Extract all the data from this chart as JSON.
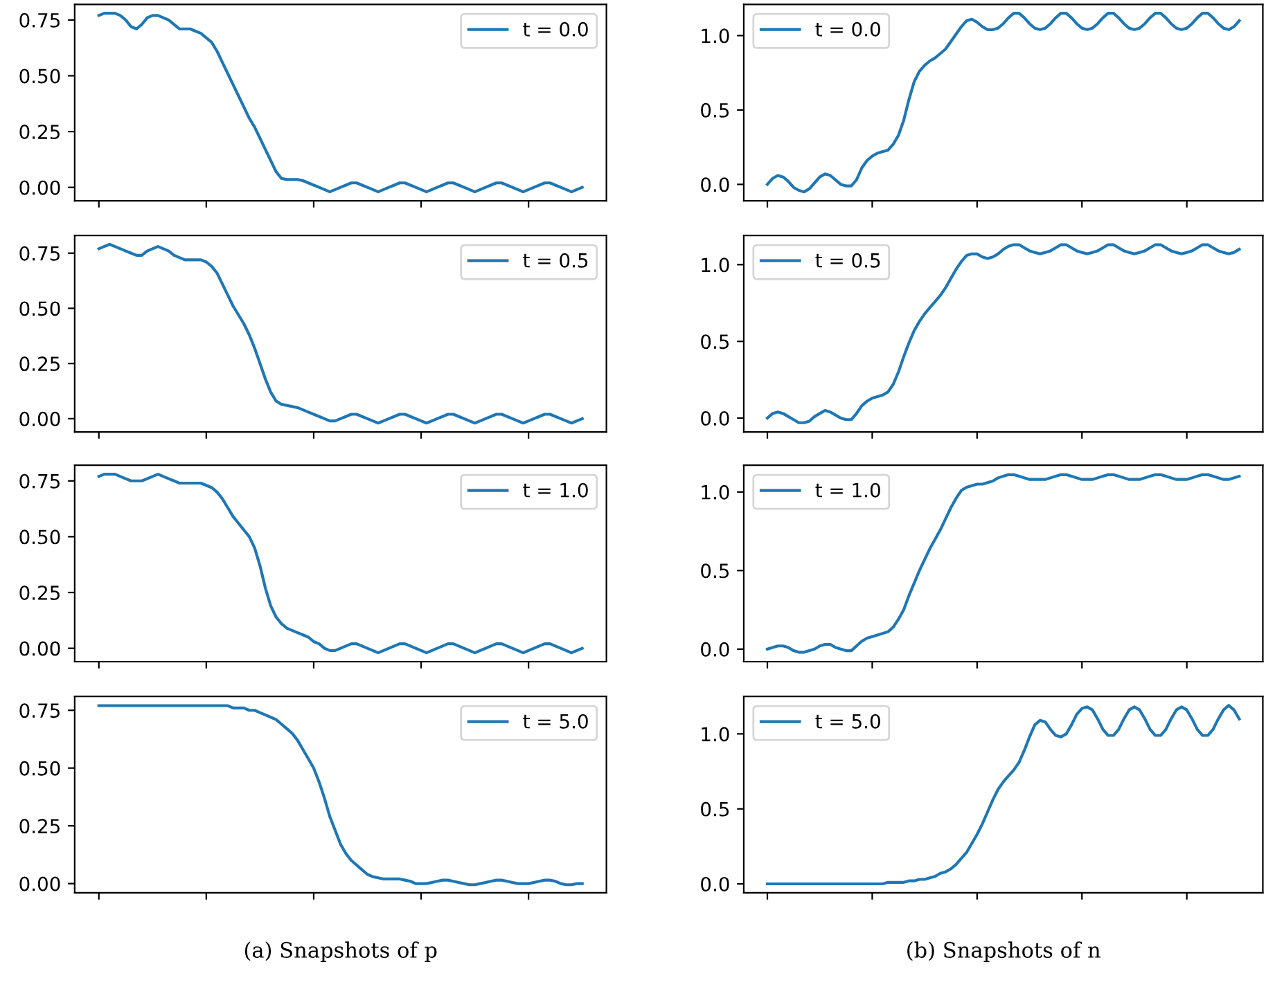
{
  "chart_data": [
    {
      "type": "line",
      "categories": [
        null,
        null,
        null,
        null,
        null,
        null,
        null,
        null,
        null,
        null,
        null,
        null,
        null,
        null,
        null,
        null,
        null,
        null,
        null,
        null,
        null,
        null,
        null,
        null,
        null,
        null,
        null,
        null,
        null,
        null,
        null,
        null,
        null,
        null,
        null,
        null,
        null,
        null,
        null,
        null,
        null,
        null,
        null,
        null,
        null,
        null,
        null,
        null,
        null,
        null,
        null,
        null,
        null,
        null,
        null,
        null,
        null,
        null,
        null,
        null,
        null,
        null,
        null,
        null,
        null,
        null,
        null,
        null,
        null,
        null,
        null,
        null,
        null,
        null,
        null,
        null,
        null,
        null,
        null,
        null,
        null,
        null,
        null,
        null,
        null,
        null,
        null,
        null,
        null,
        null,
        null
      ],
      "series": [
        {
          "name": "t = 0.0",
          "color": "#1f77b4",
          "values": [
            0.77,
            0.78,
            0.78,
            0.78,
            0.77,
            0.75,
            0.72,
            0.71,
            0.73,
            0.76,
            0.77,
            0.77,
            0.76,
            0.75,
            0.73,
            0.71,
            0.71,
            0.71,
            0.7,
            0.69,
            0.67,
            0.65,
            0.61,
            0.56,
            0.51,
            0.46,
            0.41,
            0.36,
            0.31,
            0.27,
            0.22,
            0.17,
            0.12,
            0.07,
            0.04,
            0.035,
            0.035,
            0.035,
            0.03,
            0.02,
            0.01,
            0.0,
            -0.01,
            -0.02,
            -0.01,
            0.0,
            0.01,
            0.02,
            0.02,
            0.01,
            0.0,
            -0.01,
            -0.02,
            -0.01,
            0.0,
            0.01,
            0.02,
            0.02,
            0.01,
            0.0,
            -0.01,
            -0.02,
            -0.01,
            0.0,
            0.01,
            0.02,
            0.02,
            0.01,
            0.0,
            -0.01,
            -0.02,
            -0.01,
            0.0,
            0.01,
            0.02,
            0.02,
            0.01,
            0.0,
            -0.01,
            -0.02,
            -0.01,
            0.0,
            0.01,
            0.02,
            0.02,
            0.01,
            0.0,
            -0.01,
            -0.02,
            -0.01,
            0.0
          ]
        }
      ],
      "ylim": [
        -0.06,
        0.82
      ],
      "yticks": [
        {
          "value": 0,
          "label": "0.00"
        },
        {
          "value": 0.25,
          "label": "0.25"
        },
        {
          "value": 0.5,
          "label": "0.50"
        },
        {
          "value": 0.75,
          "label": "0.75"
        }
      ],
      "legend": "top right"
    },
    {
      "type": "line",
      "categories": [
        null,
        null,
        null,
        null,
        null,
        null,
        null,
        null,
        null,
        null,
        null,
        null,
        null,
        null,
        null,
        null,
        null,
        null,
        null,
        null,
        null,
        null,
        null,
        null,
        null,
        null,
        null,
        null,
        null,
        null,
        null,
        null,
        null,
        null,
        null,
        null,
        null,
        null,
        null,
        null,
        null,
        null,
        null,
        null,
        null,
        null,
        null,
        null,
        null,
        null,
        null,
        null,
        null,
        null,
        null,
        null,
        null,
        null,
        null,
        null,
        null,
        null,
        null,
        null,
        null,
        null,
        null,
        null,
        null,
        null,
        null,
        null,
        null,
        null,
        null,
        null,
        null,
        null,
        null,
        null,
        null,
        null,
        null,
        null,
        null,
        null,
        null,
        null,
        null,
        null,
        null
      ],
      "series": [
        {
          "name": "t = 0.5",
          "color": "#1f77b4",
          "values": [
            0.77,
            0.78,
            0.79,
            0.78,
            0.77,
            0.76,
            0.75,
            0.74,
            0.74,
            0.76,
            0.77,
            0.78,
            0.77,
            0.76,
            0.74,
            0.73,
            0.72,
            0.72,
            0.72,
            0.72,
            0.71,
            0.69,
            0.66,
            0.61,
            0.56,
            0.51,
            0.47,
            0.43,
            0.38,
            0.32,
            0.25,
            0.18,
            0.12,
            0.08,
            0.065,
            0.06,
            0.055,
            0.05,
            0.04,
            0.03,
            0.02,
            0.01,
            0.0,
            -0.01,
            -0.01,
            0.0,
            0.01,
            0.02,
            0.02,
            0.01,
            0.0,
            -0.01,
            -0.02,
            -0.01,
            0.0,
            0.01,
            0.02,
            0.02,
            0.01,
            0.0,
            -0.01,
            -0.02,
            -0.01,
            0.0,
            0.01,
            0.02,
            0.02,
            0.01,
            0.0,
            -0.01,
            -0.02,
            -0.01,
            0.0,
            0.01,
            0.02,
            0.02,
            0.01,
            0.0,
            -0.01,
            -0.02,
            -0.01,
            0.0,
            0.01,
            0.02,
            0.02,
            0.01,
            0.0,
            -0.01,
            -0.02,
            -0.01,
            0.0
          ]
        }
      ],
      "ylim": [
        -0.06,
        0.83
      ],
      "yticks": [
        {
          "value": 0,
          "label": "0.00"
        },
        {
          "value": 0.25,
          "label": "0.25"
        },
        {
          "value": 0.5,
          "label": "0.50"
        },
        {
          "value": 0.75,
          "label": "0.75"
        }
      ],
      "legend": "top right"
    },
    {
      "type": "line",
      "categories": [
        null,
        null,
        null,
        null,
        null,
        null,
        null,
        null,
        null,
        null,
        null,
        null,
        null,
        null,
        null,
        null,
        null,
        null,
        null,
        null,
        null,
        null,
        null,
        null,
        null,
        null,
        null,
        null,
        null,
        null,
        null,
        null,
        null,
        null,
        null,
        null,
        null,
        null,
        null,
        null,
        null,
        null,
        null,
        null,
        null,
        null,
        null,
        null,
        null,
        null,
        null,
        null,
        null,
        null,
        null,
        null,
        null,
        null,
        null,
        null,
        null,
        null,
        null,
        null,
        null,
        null,
        null,
        null,
        null,
        null,
        null,
        null,
        null,
        null,
        null,
        null,
        null,
        null,
        null,
        null,
        null,
        null,
        null,
        null,
        null,
        null,
        null,
        null,
        null,
        null,
        null
      ],
      "series": [
        {
          "name": "t = 1.0",
          "color": "#1f77b4",
          "values": [
            0.77,
            0.78,
            0.78,
            0.78,
            0.77,
            0.76,
            0.75,
            0.75,
            0.75,
            0.76,
            0.77,
            0.78,
            0.77,
            0.76,
            0.75,
            0.74,
            0.74,
            0.74,
            0.74,
            0.74,
            0.73,
            0.72,
            0.7,
            0.67,
            0.63,
            0.59,
            0.56,
            0.53,
            0.5,
            0.45,
            0.37,
            0.27,
            0.19,
            0.14,
            0.11,
            0.09,
            0.08,
            0.07,
            0.06,
            0.05,
            0.03,
            0.02,
            0.0,
            -0.01,
            -0.01,
            0.0,
            0.01,
            0.02,
            0.02,
            0.01,
            0.0,
            -0.01,
            -0.02,
            -0.01,
            0.0,
            0.01,
            0.02,
            0.02,
            0.01,
            0.0,
            -0.01,
            -0.02,
            -0.01,
            0.0,
            0.01,
            0.02,
            0.02,
            0.01,
            0.0,
            -0.01,
            -0.02,
            -0.01,
            0.0,
            0.01,
            0.02,
            0.02,
            0.01,
            0.0,
            -0.01,
            -0.02,
            -0.01,
            0.0,
            0.01,
            0.02,
            0.02,
            0.01,
            0.0,
            -0.01,
            -0.02,
            -0.01,
            0.0
          ]
        }
      ],
      "ylim": [
        -0.06,
        0.82
      ],
      "yticks": [
        {
          "value": 0,
          "label": "0.00"
        },
        {
          "value": 0.25,
          "label": "0.25"
        },
        {
          "value": 0.5,
          "label": "0.50"
        },
        {
          "value": 0.75,
          "label": "0.75"
        }
      ],
      "legend": "top right"
    },
    {
      "type": "line",
      "categories": [
        null,
        null,
        null,
        null,
        null,
        null,
        null,
        null,
        null,
        null,
        null,
        null,
        null,
        null,
        null,
        null,
        null,
        null,
        null,
        null,
        null,
        null,
        null,
        null,
        null,
        null,
        null,
        null,
        null,
        null,
        null,
        null,
        null,
        null,
        null,
        null,
        null,
        null,
        null,
        null,
        null,
        null,
        null,
        null,
        null,
        null,
        null,
        null,
        null,
        null,
        null,
        null,
        null,
        null,
        null,
        null,
        null,
        null,
        null,
        null,
        null,
        null,
        null,
        null,
        null,
        null,
        null,
        null,
        null,
        null,
        null,
        null,
        null,
        null,
        null,
        null,
        null,
        null,
        null,
        null,
        null,
        null,
        null,
        null,
        null,
        null,
        null,
        null,
        null,
        null,
        null
      ],
      "series": [
        {
          "name": "t = 5.0",
          "color": "#1f77b4",
          "values": [
            0.77,
            0.77,
            0.77,
            0.77,
            0.77,
            0.77,
            0.77,
            0.77,
            0.77,
            0.77,
            0.77,
            0.77,
            0.77,
            0.77,
            0.77,
            0.77,
            0.77,
            0.77,
            0.77,
            0.77,
            0.77,
            0.77,
            0.77,
            0.77,
            0.77,
            0.76,
            0.76,
            0.76,
            0.75,
            0.75,
            0.74,
            0.73,
            0.72,
            0.71,
            0.69,
            0.67,
            0.65,
            0.62,
            0.58,
            0.54,
            0.5,
            0.44,
            0.37,
            0.29,
            0.23,
            0.17,
            0.13,
            0.1,
            0.08,
            0.06,
            0.04,
            0.03,
            0.025,
            0.02,
            0.02,
            0.02,
            0.02,
            0.015,
            0.01,
            0.0,
            0.0,
            0.0,
            0.005,
            0.01,
            0.015,
            0.015,
            0.01,
            0.005,
            0.0,
            -0.005,
            -0.005,
            0.0,
            0.005,
            0.01,
            0.015,
            0.015,
            0.01,
            0.005,
            0.0,
            0.0,
            0.0,
            0.005,
            0.01,
            0.015,
            0.015,
            0.01,
            0.0,
            -0.005,
            -0.005,
            0.0,
            0.0
          ]
        }
      ],
      "ylim": [
        -0.04,
        0.81
      ],
      "yticks": [
        {
          "value": 0,
          "label": "0.00"
        },
        {
          "value": 0.25,
          "label": "0.25"
        },
        {
          "value": 0.5,
          "label": "0.50"
        },
        {
          "value": 0.75,
          "label": "0.75"
        }
      ],
      "legend": "top right",
      "annotations": [
        "(a) Snapshots of p"
      ]
    },
    {
      "type": "line",
      "categories": [
        null,
        null,
        null,
        null,
        null,
        null,
        null,
        null,
        null,
        null,
        null,
        null,
        null,
        null,
        null,
        null,
        null,
        null,
        null,
        null,
        null,
        null,
        null,
        null,
        null,
        null,
        null,
        null,
        null,
        null,
        null,
        null,
        null,
        null,
        null,
        null,
        null,
        null,
        null,
        null,
        null,
        null,
        null,
        null,
        null,
        null,
        null,
        null,
        null,
        null,
        null,
        null,
        null,
        null,
        null,
        null,
        null,
        null,
        null,
        null,
        null,
        null,
        null,
        null,
        null,
        null,
        null,
        null,
        null,
        null,
        null,
        null,
        null,
        null,
        null,
        null,
        null,
        null,
        null,
        null,
        null,
        null,
        null,
        null,
        null,
        null,
        null,
        null,
        null,
        null,
        null
      ],
      "series": [
        {
          "name": "t = 0.0",
          "color": "#1f77b4",
          "values": [
            0.0,
            0.04,
            0.06,
            0.05,
            0.02,
            -0.02,
            -0.04,
            -0.05,
            -0.03,
            0.01,
            0.05,
            0.07,
            0.06,
            0.03,
            0.0,
            -0.01,
            -0.01,
            0.03,
            0.11,
            0.16,
            0.19,
            0.21,
            0.22,
            0.23,
            0.27,
            0.33,
            0.43,
            0.57,
            0.69,
            0.76,
            0.8,
            0.83,
            0.85,
            0.88,
            0.91,
            0.96,
            1.01,
            1.06,
            1.1,
            1.11,
            1.09,
            1.06,
            1.04,
            1.04,
            1.05,
            1.08,
            1.12,
            1.15,
            1.15,
            1.12,
            1.08,
            1.05,
            1.04,
            1.05,
            1.08,
            1.12,
            1.15,
            1.15,
            1.12,
            1.08,
            1.05,
            1.04,
            1.05,
            1.08,
            1.12,
            1.15,
            1.15,
            1.12,
            1.08,
            1.05,
            1.04,
            1.05,
            1.08,
            1.12,
            1.15,
            1.15,
            1.12,
            1.08,
            1.05,
            1.04,
            1.05,
            1.08,
            1.12,
            1.15,
            1.15,
            1.12,
            1.08,
            1.05,
            1.04,
            1.06,
            1.1
          ]
        }
      ],
      "ylim": [
        -0.11,
        1.21
      ],
      "yticks": [
        {
          "value": 0,
          "label": "0.0"
        },
        {
          "value": 0.5,
          "label": "0.5"
        },
        {
          "value": 1,
          "label": "1.0"
        }
      ],
      "legend": "top left"
    },
    {
      "type": "line",
      "categories": [
        null,
        null,
        null,
        null,
        null,
        null,
        null,
        null,
        null,
        null,
        null,
        null,
        null,
        null,
        null,
        null,
        null,
        null,
        null,
        null,
        null,
        null,
        null,
        null,
        null,
        null,
        null,
        null,
        null,
        null,
        null,
        null,
        null,
        null,
        null,
        null,
        null,
        null,
        null,
        null,
        null,
        null,
        null,
        null,
        null,
        null,
        null,
        null,
        null,
        null,
        null,
        null,
        null,
        null,
        null,
        null,
        null,
        null,
        null,
        null,
        null,
        null,
        null,
        null,
        null,
        null,
        null,
        null,
        null,
        null,
        null,
        null,
        null,
        null,
        null,
        null,
        null,
        null,
        null,
        null,
        null,
        null,
        null,
        null,
        null,
        null,
        null,
        null,
        null,
        null,
        null
      ],
      "series": [
        {
          "name": "t = 0.5",
          "color": "#1f77b4",
          "values": [
            0.0,
            0.03,
            0.04,
            0.03,
            0.01,
            -0.01,
            -0.03,
            -0.03,
            -0.02,
            0.01,
            0.03,
            0.05,
            0.04,
            0.02,
            0.0,
            -0.01,
            -0.01,
            0.03,
            0.08,
            0.11,
            0.13,
            0.14,
            0.15,
            0.17,
            0.22,
            0.3,
            0.4,
            0.49,
            0.57,
            0.63,
            0.68,
            0.72,
            0.76,
            0.8,
            0.85,
            0.91,
            0.97,
            1.02,
            1.06,
            1.07,
            1.07,
            1.05,
            1.04,
            1.05,
            1.07,
            1.1,
            1.12,
            1.13,
            1.13,
            1.11,
            1.09,
            1.08,
            1.07,
            1.08,
            1.09,
            1.11,
            1.13,
            1.13,
            1.11,
            1.09,
            1.08,
            1.07,
            1.08,
            1.09,
            1.11,
            1.13,
            1.13,
            1.11,
            1.09,
            1.08,
            1.07,
            1.08,
            1.09,
            1.11,
            1.13,
            1.13,
            1.11,
            1.09,
            1.08,
            1.07,
            1.08,
            1.09,
            1.11,
            1.13,
            1.13,
            1.11,
            1.09,
            1.08,
            1.07,
            1.08,
            1.1
          ]
        }
      ],
      "ylim": [
        -0.09,
        1.19
      ],
      "yticks": [
        {
          "value": 0,
          "label": "0.0"
        },
        {
          "value": 0.5,
          "label": "0.5"
        },
        {
          "value": 1,
          "label": "1.0"
        }
      ],
      "legend": "top left"
    },
    {
      "type": "line",
      "categories": [
        null,
        null,
        null,
        null,
        null,
        null,
        null,
        null,
        null,
        null,
        null,
        null,
        null,
        null,
        null,
        null,
        null,
        null,
        null,
        null,
        null,
        null,
        null,
        null,
        null,
        null,
        null,
        null,
        null,
        null,
        null,
        null,
        null,
        null,
        null,
        null,
        null,
        null,
        null,
        null,
        null,
        null,
        null,
        null,
        null,
        null,
        null,
        null,
        null,
        null,
        null,
        null,
        null,
        null,
        null,
        null,
        null,
        null,
        null,
        null,
        null,
        null,
        null,
        null,
        null,
        null,
        null,
        null,
        null,
        null,
        null,
        null,
        null,
        null,
        null,
        null,
        null,
        null,
        null,
        null,
        null,
        null,
        null,
        null,
        null,
        null,
        null,
        null,
        null,
        null,
        null
      ],
      "series": [
        {
          "name": "t = 1.0",
          "color": "#1f77b4",
          "values": [
            0.0,
            0.01,
            0.02,
            0.02,
            0.01,
            -0.01,
            -0.02,
            -0.02,
            -0.01,
            0.0,
            0.02,
            0.03,
            0.03,
            0.01,
            0.0,
            -0.01,
            -0.01,
            0.02,
            0.05,
            0.07,
            0.08,
            0.09,
            0.1,
            0.11,
            0.14,
            0.19,
            0.25,
            0.34,
            0.42,
            0.5,
            0.57,
            0.64,
            0.7,
            0.76,
            0.83,
            0.9,
            0.96,
            1.01,
            1.03,
            1.04,
            1.05,
            1.05,
            1.06,
            1.07,
            1.09,
            1.1,
            1.11,
            1.11,
            1.1,
            1.09,
            1.08,
            1.08,
            1.08,
            1.08,
            1.09,
            1.1,
            1.11,
            1.11,
            1.1,
            1.09,
            1.08,
            1.08,
            1.08,
            1.09,
            1.1,
            1.11,
            1.11,
            1.1,
            1.09,
            1.08,
            1.08,
            1.08,
            1.09,
            1.1,
            1.11,
            1.11,
            1.1,
            1.09,
            1.08,
            1.08,
            1.08,
            1.09,
            1.1,
            1.11,
            1.11,
            1.1,
            1.09,
            1.08,
            1.08,
            1.09,
            1.1
          ]
        }
      ],
      "ylim": [
        -0.08,
        1.17
      ],
      "yticks": [
        {
          "value": 0,
          "label": "0.0"
        },
        {
          "value": 0.5,
          "label": "0.5"
        },
        {
          "value": 1,
          "label": "1.0"
        }
      ],
      "legend": "top left"
    },
    {
      "type": "line",
      "categories": [
        null,
        null,
        null,
        null,
        null,
        null,
        null,
        null,
        null,
        null,
        null,
        null,
        null,
        null,
        null,
        null,
        null,
        null,
        null,
        null,
        null,
        null,
        null,
        null,
        null,
        null,
        null,
        null,
        null,
        null,
        null,
        null,
        null,
        null,
        null,
        null,
        null,
        null,
        null,
        null,
        null,
        null,
        null,
        null,
        null,
        null,
        null,
        null,
        null,
        null,
        null,
        null,
        null,
        null,
        null,
        null,
        null,
        null,
        null,
        null,
        null,
        null,
        null,
        null,
        null,
        null,
        null,
        null,
        null,
        null,
        null,
        null,
        null,
        null,
        null,
        null,
        null,
        null,
        null,
        null,
        null,
        null,
        null,
        null,
        null,
        null,
        null,
        null,
        null,
        null,
        null
      ],
      "series": [
        {
          "name": "t = 5.0",
          "color": "#1f77b4",
          "values": [
            0.0,
            0.0,
            0.0,
            0.0,
            0.0,
            0.0,
            0.0,
            0.0,
            0.0,
            0.0,
            0.0,
            0.0,
            0.0,
            0.0,
            0.0,
            0.0,
            0.0,
            0.0,
            0.0,
            0.0,
            0.0,
            0.0,
            0.0,
            0.01,
            0.01,
            0.01,
            0.01,
            0.02,
            0.02,
            0.03,
            0.03,
            0.04,
            0.05,
            0.07,
            0.08,
            0.1,
            0.13,
            0.17,
            0.21,
            0.27,
            0.33,
            0.4,
            0.48,
            0.56,
            0.63,
            0.68,
            0.72,
            0.76,
            0.81,
            0.89,
            0.98,
            1.06,
            1.09,
            1.08,
            1.03,
            0.99,
            0.98,
            1.0,
            1.06,
            1.13,
            1.17,
            1.18,
            1.16,
            1.1,
            1.03,
            0.99,
            0.99,
            1.03,
            1.1,
            1.16,
            1.18,
            1.16,
            1.1,
            1.03,
            0.99,
            0.99,
            1.03,
            1.1,
            1.16,
            1.18,
            1.16,
            1.1,
            1.03,
            0.99,
            0.99,
            1.03,
            1.1,
            1.16,
            1.19,
            1.16,
            1.1
          ]
        }
      ],
      "ylim": [
        -0.06,
        1.25
      ],
      "yticks": [
        {
          "value": 0,
          "label": "0.0"
        },
        {
          "value": 0.5,
          "label": "0.5"
        },
        {
          "value": 1,
          "label": "1.0"
        }
      ],
      "legend": "top left",
      "annotations": [
        "(b) Snapshots of n"
      ]
    }
  ]
}
